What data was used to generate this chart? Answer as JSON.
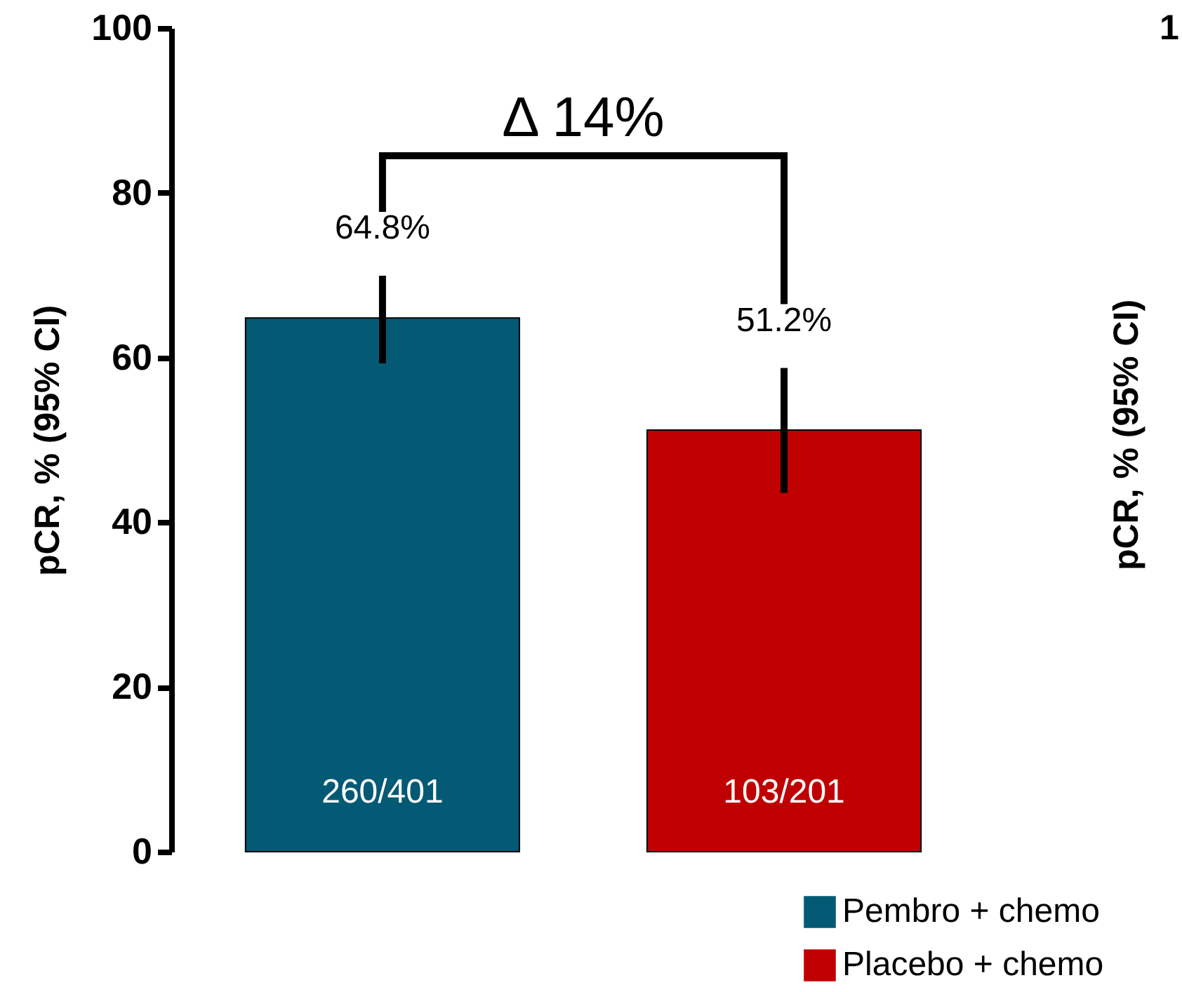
{
  "chart_data": [
    {
      "type": "bar",
      "ylabel": "pCR, % (95% CI)",
      "categories": [
        null,
        null
      ],
      "series": [
        {
          "name": "Pembro + chemo",
          "color": "#045a74",
          "values": [
            64.8,
            null
          ],
          "errors": [
            [
              59.7,
              69.5
            ],
            null
          ],
          "value_labels": [
            "64.8%",
            null
          ]
        },
        {
          "name": "Placebo + chemo",
          "color": "#c00000",
          "values": [
            null,
            51.2
          ],
          "errors": [
            null,
            [
              44.0,
              58.3
            ]
          ],
          "value_labels": [
            null,
            "51.2%"
          ]
        }
      ],
      "annotations": [
        "Δ 14%",
        "260/401",
        "103/201"
      ],
      "stacked": true,
      "ylim": [
        0,
        100
      ],
      "yticks": [
        0,
        20,
        40,
        60,
        80,
        100
      ],
      "grid": false,
      "legend": "bottom right"
    },
    {
      "type": "other",
      "ylabel": "pCR, % (95% CI)",
      "annotations": [
        "1"
      ]
    }
  ]
}
